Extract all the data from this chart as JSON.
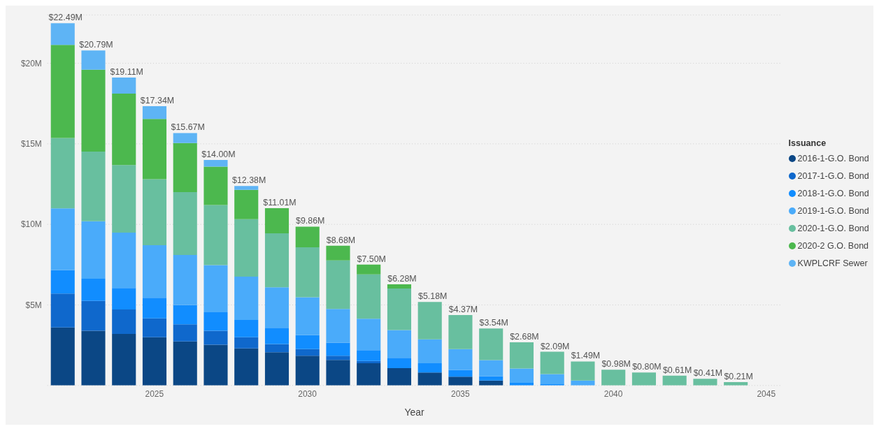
{
  "chart_data": {
    "type": "bar",
    "stacked": true,
    "xlabel": "Year",
    "legend_title": "Issuance",
    "legend": "right",
    "grid": "y",
    "x": [
      2022,
      2023,
      2024,
      2025,
      2026,
      2027,
      2028,
      2029,
      2030,
      2031,
      2032,
      2033,
      2034,
      2035,
      2036,
      2037,
      2038,
      2039,
      2040,
      2041,
      2042,
      2043,
      2044
    ],
    "xlim": [
      2021.5,
      2045.5
    ],
    "xticks": [
      2025,
      2030,
      2035,
      2040,
      2045
    ],
    "ylim": [
      0,
      23
    ],
    "yticks": [
      {
        "value": 5,
        "label": "$5M"
      },
      {
        "value": 10,
        "label": "$10M"
      },
      {
        "value": 15,
        "label": "$15M"
      },
      {
        "value": 20,
        "label": "$20M"
      }
    ],
    "series": [
      {
        "name": "2016-1-G.O. Bond",
        "color": "#0b4785",
        "values": [
          3.6,
          3.4,
          3.2,
          3.0,
          2.73,
          2.53,
          2.3,
          2.06,
          1.85,
          1.59,
          1.38,
          1.08,
          0.81,
          0.55,
          0.31,
          null,
          null,
          null,
          null,
          null,
          null,
          null,
          null
        ]
      },
      {
        "name": "2017-1-G.O. Bond",
        "color": "#0f68cc",
        "values": [
          2.11,
          1.85,
          1.52,
          1.17,
          1.07,
          0.87,
          0.7,
          0.51,
          0.41,
          0.26,
          0.14,
          null,
          null,
          null,
          null,
          null,
          null,
          null,
          null,
          null,
          null,
          null,
          null
        ]
      },
      {
        "name": "2018-1-G.O. Bond",
        "color": "#118dff",
        "values": [
          1.45,
          1.38,
          1.33,
          1.27,
          1.19,
          1.14,
          1.07,
          1.01,
          0.87,
          0.81,
          0.67,
          0.64,
          0.57,
          0.41,
          0.27,
          0.17,
          0.08,
          null,
          null,
          null,
          null,
          null,
          null
        ]
      },
      {
        "name": "2019-1-G.O. Bond",
        "color": "#4aabfa",
        "values": [
          3.83,
          3.56,
          3.44,
          3.27,
          3.11,
          2.93,
          2.69,
          2.51,
          2.35,
          2.09,
          1.95,
          1.72,
          1.48,
          1.3,
          1.0,
          0.88,
          0.63,
          0.31,
          null,
          null,
          null,
          null,
          null
        ]
      },
      {
        "name": "2020-1-G.O. Bond",
        "color": "#68bf9f",
        "values": [
          4.37,
          4.33,
          4.19,
          4.1,
          3.9,
          3.73,
          3.56,
          3.36,
          3.1,
          3.02,
          2.76,
          2.58,
          2.32,
          2.11,
          1.96,
          1.63,
          1.38,
          1.18,
          0.98,
          0.8,
          0.61,
          0.41,
          0.21
        ]
      },
      {
        "name": "2020-2 G.O. Bond",
        "color": "#4cb84e",
        "values": [
          5.78,
          5.08,
          4.44,
          3.73,
          3.05,
          2.39,
          1.82,
          1.56,
          1.28,
          0.91,
          0.6,
          0.26,
          null,
          null,
          null,
          null,
          null,
          null,
          null,
          null,
          null,
          null,
          null
        ]
      },
      {
        "name": "KWPLCRF Sewer",
        "color": "#5eb4f5",
        "values": [
          1.35,
          1.19,
          0.99,
          0.8,
          0.62,
          0.41,
          0.24,
          null,
          null,
          null,
          null,
          null,
          null,
          null,
          null,
          null,
          null,
          null,
          null,
          null,
          null,
          null,
          null
        ]
      }
    ],
    "totals": [
      "$22.49M",
      "$20.79M",
      "$19.11M",
      "$17.34M",
      "$15.67M",
      "$14.00M",
      "$12.38M",
      "$11.01M",
      "$9.86M",
      "$8.68M",
      "$7.50M",
      "$6.28M",
      "$5.18M",
      "$4.37M",
      "$3.54M",
      "$2.68M",
      "$2.09M",
      "$1.49M",
      "$0.98M",
      "$0.80M",
      "$0.61M",
      "$0.41M",
      "$0.21M"
    ]
  }
}
